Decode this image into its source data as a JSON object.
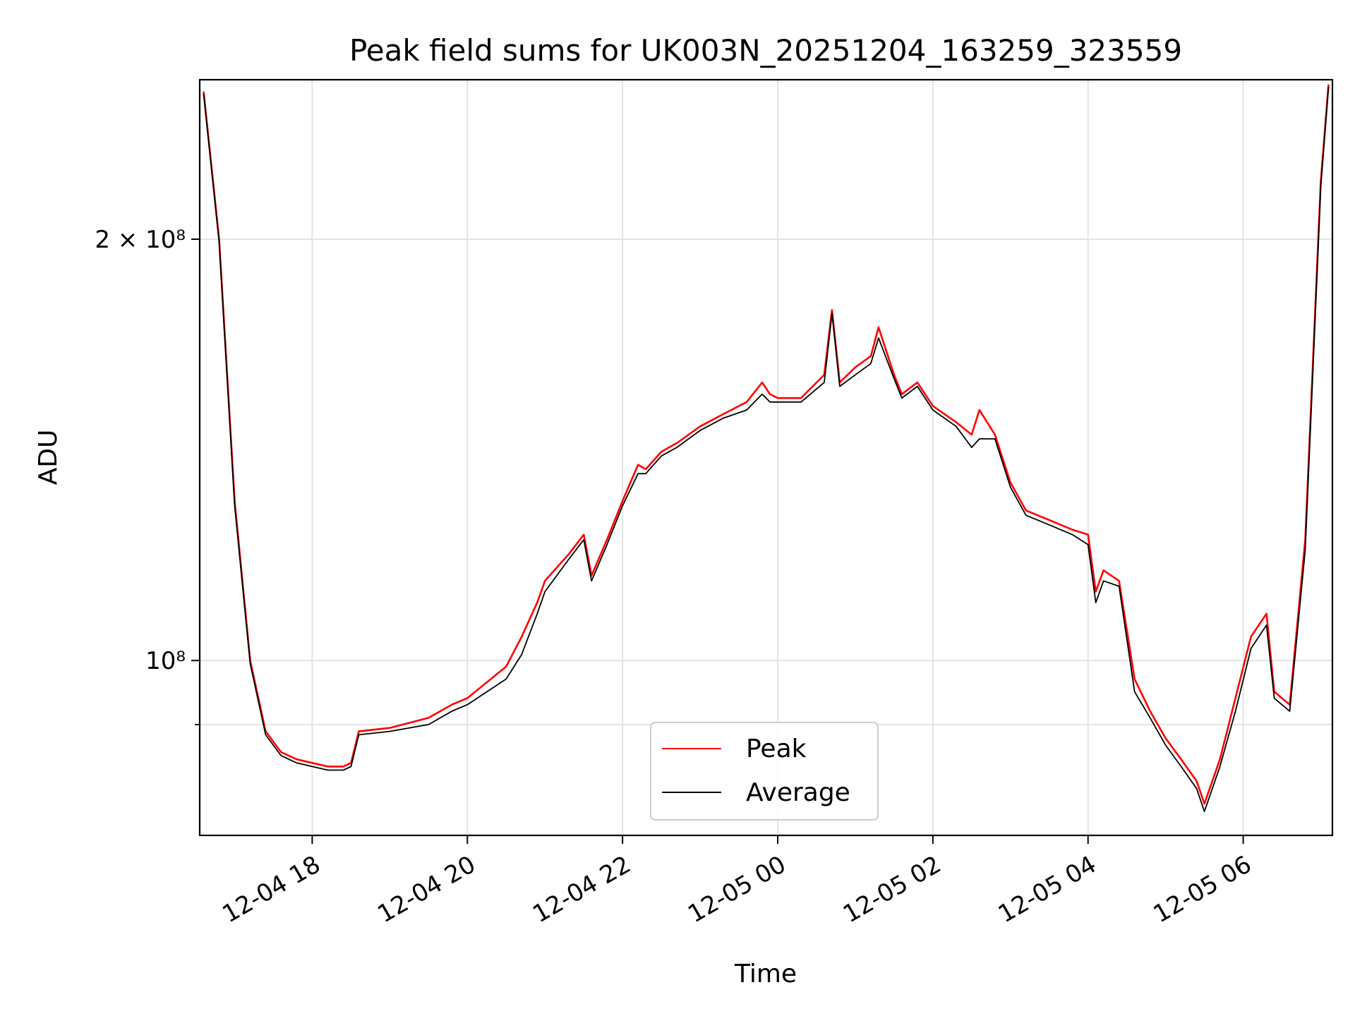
{
  "chart_data": {
    "type": "line",
    "title": "Peak field sums for UK003N_20251204_163259_323559",
    "xlabel": "Time",
    "ylabel": "ADU",
    "yscale": "log",
    "ylim": [
      75000000,
      260000000
    ],
    "xlim_hours": [
      16.55,
      31.15
    ],
    "x_ticks": [
      {
        "hour": 18,
        "label": "12-04 18"
      },
      {
        "hour": 20,
        "label": "12-04 20"
      },
      {
        "hour": 22,
        "label": "12-04 22"
      },
      {
        "hour": 24,
        "label": "12-05 00"
      },
      {
        "hour": 26,
        "label": "12-05 02"
      },
      {
        "hour": 28,
        "label": "12-05 04"
      },
      {
        "hour": 30,
        "label": "12-05 06"
      }
    ],
    "y_ticks": [
      {
        "value": 200000000,
        "label": "2 × 10⁸"
      },
      {
        "value": 100000000,
        "label": "10⁸"
      }
    ],
    "y_minor_ticks": [
      90000000
    ],
    "grid": true,
    "legend": {
      "placement": "lower-center",
      "entries": [
        "Peak",
        "Average"
      ]
    },
    "series": [
      {
        "name": "Peak",
        "color": "#ff0000",
        "x": [
          16.6,
          16.8,
          17.0,
          17.2,
          17.4,
          17.6,
          17.8,
          18.0,
          18.2,
          18.4,
          18.5,
          18.6,
          19.0,
          19.5,
          19.8,
          20.0,
          20.5,
          20.7,
          20.9,
          21.0,
          21.3,
          21.5,
          21.6,
          21.8,
          22.0,
          22.2,
          22.3,
          22.5,
          22.7,
          23.0,
          23.3,
          23.6,
          23.8,
          23.9,
          24.0,
          24.3,
          24.6,
          24.7,
          24.8,
          25.0,
          25.2,
          25.3,
          25.5,
          25.6,
          25.8,
          26.0,
          26.3,
          26.5,
          26.6,
          26.8,
          27.0,
          27.2,
          27.5,
          27.8,
          28.0,
          28.1,
          28.2,
          28.4,
          28.6,
          28.8,
          29.0,
          29.2,
          29.4,
          29.5,
          29.7,
          29.9,
          30.1,
          30.3,
          30.4,
          30.6,
          30.8,
          31.0,
          31.1
        ],
        "y": [
          255000000,
          200000000,
          130000000,
          100000000,
          89000000,
          86000000,
          85000000,
          84500000,
          84000000,
          84000000,
          84500000,
          89000000,
          89500000,
          91000000,
          93000000,
          94000000,
          99000000,
          104000000,
          110000000,
          114000000,
          119000000,
          123000000,
          115000000,
          122000000,
          130000000,
          138000000,
          137000000,
          141000000,
          143000000,
          147000000,
          150000000,
          153000000,
          158000000,
          155000000,
          154000000,
          154000000,
          160000000,
          178000000,
          158000000,
          162000000,
          165000000,
          173000000,
          160000000,
          155000000,
          158000000,
          152000000,
          148000000,
          145000000,
          151000000,
          145000000,
          134000000,
          128000000,
          126000000,
          124000000,
          123000000,
          112000000,
          116000000,
          114000000,
          97000000,
          92000000,
          88000000,
          85000000,
          82000000,
          79000000,
          85000000,
          94000000,
          104000000,
          108000000,
          95000000,
          93000000,
          122000000,
          220000000,
          258000000
        ]
      },
      {
        "name": "Average",
        "color": "#000000",
        "x": [
          16.6,
          16.8,
          17.0,
          17.2,
          17.4,
          17.6,
          17.8,
          18.0,
          18.2,
          18.4,
          18.5,
          18.6,
          19.0,
          19.5,
          19.8,
          20.0,
          20.5,
          20.7,
          20.9,
          21.0,
          21.3,
          21.5,
          21.6,
          21.8,
          22.0,
          22.2,
          22.3,
          22.5,
          22.7,
          23.0,
          23.3,
          23.6,
          23.8,
          23.9,
          24.0,
          24.3,
          24.6,
          24.7,
          24.8,
          25.0,
          25.2,
          25.3,
          25.5,
          25.6,
          25.8,
          26.0,
          26.3,
          26.5,
          26.6,
          26.8,
          27.0,
          27.2,
          27.5,
          27.8,
          28.0,
          28.1,
          28.2,
          28.4,
          28.6,
          28.8,
          29.0,
          29.2,
          29.4,
          29.5,
          29.7,
          29.9,
          30.1,
          30.3,
          30.4,
          30.6,
          30.8,
          31.0,
          31.1
        ],
        "y": [
          254000000,
          199000000,
          129000000,
          99500000,
          88500000,
          85500000,
          84500000,
          84000000,
          83500000,
          83500000,
          84000000,
          88500000,
          89000000,
          90000000,
          92000000,
          93000000,
          97000000,
          101000000,
          108000000,
          112000000,
          118000000,
          122000000,
          114000000,
          121000000,
          129000000,
          136000000,
          136000000,
          140000000,
          142000000,
          146000000,
          149000000,
          151000000,
          155000000,
          153000000,
          153000000,
          153000000,
          158000000,
          177000000,
          157000000,
          160000000,
          163000000,
          170000000,
          159000000,
          154000000,
          157000000,
          151000000,
          147000000,
          142000000,
          144000000,
          144000000,
          133000000,
          127000000,
          125000000,
          123000000,
          121000000,
          110000000,
          114000000,
          113000000,
          95000000,
          91000000,
          87000000,
          84000000,
          81000000,
          78000000,
          84000000,
          92000000,
          102000000,
          106000000,
          94000000,
          92000000,
          120000000,
          218000000,
          257000000
        ]
      }
    ]
  }
}
